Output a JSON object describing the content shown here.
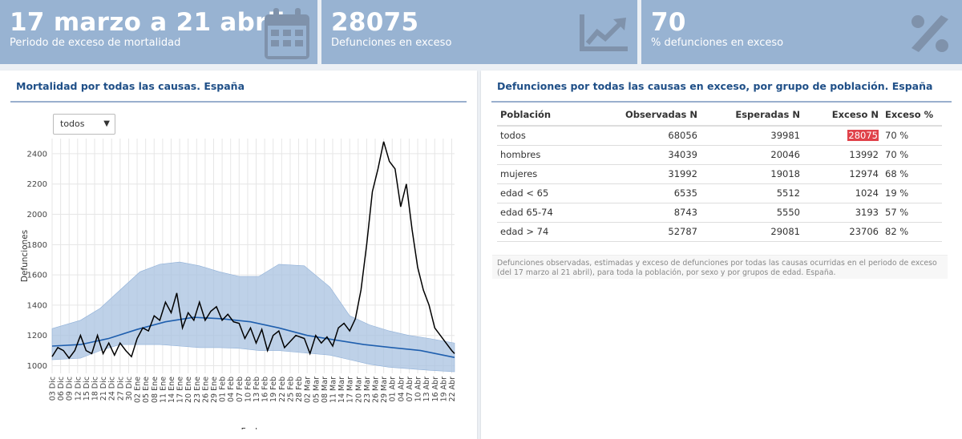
{
  "value_boxes": [
    {
      "value": "17 marzo a 21 abril",
      "subtitle": "Periodo de exceso de mortalidad",
      "icon": "calendar-icon"
    },
    {
      "value": "28075",
      "subtitle": "Defunciones en exceso",
      "icon": "chart-line-icon"
    },
    {
      "value": "70",
      "subtitle": "% defunciones en exceso",
      "icon": "percent-icon"
    }
  ],
  "left_panel": {
    "title": "Mortalidad por todas las causas. España",
    "select": {
      "value": "todos"
    }
  },
  "right_panel": {
    "title": "Defunciones por todas las causas en exceso, por grupo de población. España",
    "table": {
      "headers": [
        "Población",
        "Observadas N",
        "Esperadas N",
        "Exceso N",
        "Exceso %"
      ],
      "rows": [
        [
          "todos",
          "68056",
          "39981",
          "28075",
          "70 %"
        ],
        [
          "hombres",
          "34039",
          "20046",
          "13992",
          "70 %"
        ],
        [
          "mujeres",
          "31992",
          "19018",
          "12974",
          "68 %"
        ],
        [
          "edad < 65",
          "6535",
          "5512",
          "1024",
          "19 %"
        ],
        [
          "edad 65-74",
          "8743",
          "5550",
          "3193",
          "57 %"
        ],
        [
          "edad > 74",
          "52787",
          "29081",
          "23706",
          "82 %"
        ]
      ]
    },
    "caption": "Defunciones observadas, estimadas y exceso de defunciones por todas las causas ocurridas en el periodo de exceso (del 17 marzo al 21 abril), para toda la población, por sexo y por grupos de edad. España."
  },
  "colors": {
    "valuebox_bg": "#98b3d2",
    "title_blue": "#1f4f87",
    "band_fill": "#a8c2e0",
    "expected_line": "#1f5fae",
    "observed_line": "#000000",
    "highlight": "#e0424a"
  },
  "chart_data": {
    "type": "line",
    "title": "",
    "xlabel": "Fecha",
    "ylabel": "Defunciones",
    "ylim": [
      950,
      2500
    ],
    "yticks": [
      1000,
      1200,
      1400,
      1600,
      1800,
      2000,
      2200,
      2400
    ],
    "xtick_labels": [
      "03 Dic",
      "06 Dic",
      "09 Dic",
      "12 Dic",
      "15 Dic",
      "18 Dic",
      "21 Dic",
      "24 Dic",
      "27 Dic",
      "30 Dic",
      "02 Ene",
      "05 Ene",
      "08 Ene",
      "11 Ene",
      "14 Ene",
      "17 Ene",
      "20 Ene",
      "23 Ene",
      "26 Ene",
      "29 Ene",
      "01 Feb",
      "04 Feb",
      "07 Feb",
      "10 Feb",
      "13 Feb",
      "16 Feb",
      "19 Feb",
      "22 Feb",
      "25 Feb",
      "28 Feb",
      "02 Mar",
      "05 Mar",
      "08 Mar",
      "11 Mar",
      "14 Mar",
      "17 Mar",
      "20 Mar",
      "23 Mar",
      "26 Mar",
      "29 Mar",
      "01 Abr",
      "04 Abr",
      "07 Abr",
      "10 Abr",
      "13 Abr",
      "16 Abr",
      "19 Abr",
      "22 Abr"
    ],
    "x_start": "2019-12-03",
    "x_end": "2020-04-23",
    "grid": true,
    "series": [
      {
        "name": "",
        "style": "band",
        "x": [
          "2019-12-03",
          "2019-12-13",
          "2019-12-20",
          "2019-12-27",
          "2020-01-03",
          "2020-01-10",
          "2020-01-17",
          "2020-01-24",
          "2020-01-31",
          "2020-02-07",
          "2020-02-14",
          "2020-02-21",
          "2020-03-01",
          "2020-03-10",
          "2020-03-17",
          "2020-03-24",
          "2020-03-31",
          "2020-04-07",
          "2020-04-14",
          "2020-04-23"
        ],
        "upper": [
          1245,
          1300,
          1380,
          1500,
          1620,
          1670,
          1685,
          1660,
          1620,
          1590,
          1590,
          1670,
          1660,
          1520,
          1330,
          1270,
          1230,
          1200,
          1180,
          1150
        ],
        "lower": [
          1040,
          1050,
          1100,
          1140,
          1140,
          1140,
          1130,
          1120,
          1120,
          1115,
          1100,
          1100,
          1085,
          1070,
          1040,
          1010,
          990,
          980,
          970,
          960
        ]
      },
      {
        "name": "",
        "style": "expected",
        "x": [
          "2019-12-03",
          "2019-12-13",
          "2019-12-23",
          "2020-01-02",
          "2020-01-12",
          "2020-01-22",
          "2020-02-01",
          "2020-02-11",
          "2020-02-21",
          "2020-03-02",
          "2020-03-12",
          "2020-03-22",
          "2020-04-01",
          "2020-04-11",
          "2020-04-23"
        ],
        "values": [
          1130,
          1140,
          1180,
          1240,
          1290,
          1320,
          1310,
          1290,
          1250,
          1200,
          1170,
          1140,
          1120,
          1100,
          1055
        ]
      },
      {
        "name": "",
        "style": "observed",
        "x": [
          "2019-12-03",
          "2019-12-05",
          "2019-12-07",
          "2019-12-09",
          "2019-12-11",
          "2019-12-13",
          "2019-12-15",
          "2019-12-17",
          "2019-12-19",
          "2019-12-21",
          "2019-12-23",
          "2019-12-25",
          "2019-12-27",
          "2019-12-29",
          "2019-12-31",
          "2020-01-02",
          "2020-01-04",
          "2020-01-06",
          "2020-01-08",
          "2020-01-10",
          "2020-01-12",
          "2020-01-14",
          "2020-01-16",
          "2020-01-18",
          "2020-01-20",
          "2020-01-22",
          "2020-01-24",
          "2020-01-26",
          "2020-01-28",
          "2020-01-30",
          "2020-02-01",
          "2020-02-03",
          "2020-02-05",
          "2020-02-07",
          "2020-02-09",
          "2020-02-11",
          "2020-02-13",
          "2020-02-15",
          "2020-02-17",
          "2020-02-19",
          "2020-02-21",
          "2020-02-23",
          "2020-02-25",
          "2020-02-27",
          "2020-03-01",
          "2020-03-03",
          "2020-03-05",
          "2020-03-07",
          "2020-03-09",
          "2020-03-11",
          "2020-03-13",
          "2020-03-15",
          "2020-03-17",
          "2020-03-19",
          "2020-03-21",
          "2020-03-23",
          "2020-03-25",
          "2020-03-27",
          "2020-03-29",
          "2020-03-31",
          "2020-04-02",
          "2020-04-04",
          "2020-04-06",
          "2020-04-08",
          "2020-04-10",
          "2020-04-12",
          "2020-04-14",
          "2020-04-16",
          "2020-04-18",
          "2020-04-20",
          "2020-04-22",
          "2020-04-23"
        ],
        "values": [
          1060,
          1120,
          1100,
          1050,
          1100,
          1200,
          1100,
          1080,
          1200,
          1080,
          1150,
          1070,
          1150,
          1100,
          1060,
          1180,
          1250,
          1230,
          1330,
          1300,
          1420,
          1350,
          1480,
          1250,
          1350,
          1300,
          1420,
          1300,
          1360,
          1390,
          1300,
          1340,
          1290,
          1280,
          1180,
          1250,
          1150,
          1240,
          1100,
          1200,
          1230,
          1120,
          1160,
          1200,
          1180,
          1080,
          1200,
          1150,
          1190,
          1130,
          1250,
          1280,
          1230,
          1310,
          1500,
          1800,
          2150,
          2300,
          2480,
          2350,
          2300,
          2050,
          2200,
          1900,
          1650,
          1500,
          1400,
          1250,
          1200,
          1150,
          1100,
          1080
        ]
      }
    ]
  }
}
